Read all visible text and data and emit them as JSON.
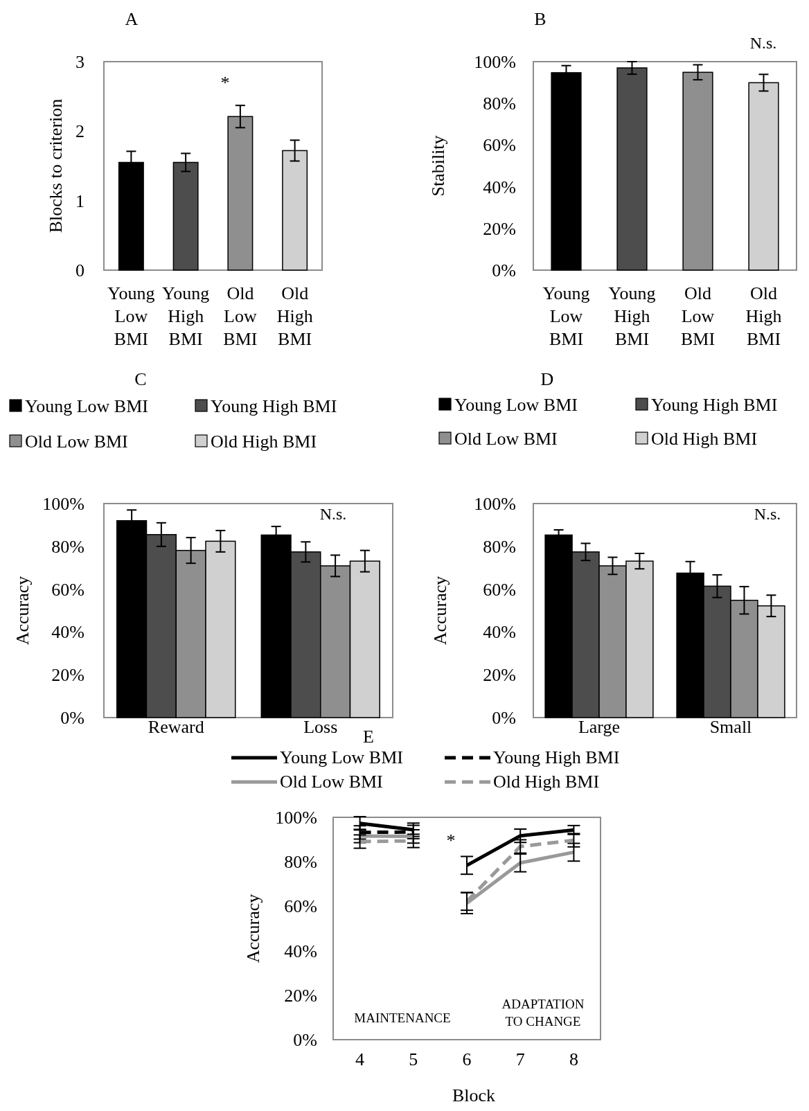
{
  "chart_data": [
    {
      "type": "bar",
      "title": "A",
      "ylabel": "Blocks to criterion",
      "categories": [
        "Young Low BMI",
        "Young High BMI",
        "Old Low BMI",
        "Old High BMI"
      ],
      "values": [
        1.55,
        1.55,
        2.21,
        1.72
      ],
      "errors": [
        0.16,
        0.13,
        0.16,
        0.15
      ],
      "colors": [
        "#000000",
        "#4d4d4d",
        "#8f8f8f",
        "#d0d0d0"
      ],
      "ylim": [
        0,
        3
      ],
      "yticks": [
        0,
        1,
        2,
        3
      ],
      "grid": false,
      "legend": false,
      "annotations": [
        "*"
      ]
    },
    {
      "type": "bar",
      "title": "B",
      "ylabel": "Stability",
      "categories": [
        "Young Low BMI",
        "Young High BMI",
        "Old Low BMI",
        "Old High BMI"
      ],
      "values": [
        94.7,
        97,
        94.9,
        89.9
      ],
      "errors": [
        3.4,
        3,
        3.6,
        4
      ],
      "colors": [
        "#000000",
        "#4d4d4d",
        "#8f8f8f",
        "#d0d0d0"
      ],
      "ylim": [
        0,
        100
      ],
      "yticks": [
        {
          "value": 0,
          "label": "0%"
        },
        {
          "value": 20,
          "label": "20%"
        },
        {
          "value": 40,
          "label": "40%"
        },
        {
          "value": 60,
          "label": "60%"
        },
        {
          "value": 80,
          "label": "80%"
        },
        {
          "value": 100,
          "label": "100%"
        }
      ],
      "grid": false,
      "legend": false,
      "annotations": [
        "N.s."
      ]
    },
    {
      "type": "bar",
      "title": "C",
      "ylabel": "Accuracy",
      "categories": [
        "Reward",
        "Loss"
      ],
      "series": [
        {
          "name": "Young Low BMI",
          "color": "#000000",
          "values": [
            92,
            85.3
          ],
          "errors": [
            5,
            4
          ]
        },
        {
          "name": "Young High BMI",
          "color": "#4d4d4d",
          "values": [
            85.5,
            77.4
          ],
          "errors": [
            5.5,
            4.7
          ]
        },
        {
          "name": "Old Low BMI",
          "color": "#8f8f8f",
          "values": [
            78.1,
            70.9
          ],
          "errors": [
            6,
            5
          ]
        },
        {
          "name": "Old High BMI",
          "color": "#d0d0d0",
          "values": [
            82.4,
            73.1
          ],
          "errors": [
            5,
            5
          ]
        }
      ],
      "ylim": [
        0,
        100
      ],
      "yticks": [
        {
          "value": 0,
          "label": "0%"
        },
        {
          "value": 20,
          "label": "20%"
        },
        {
          "value": 40,
          "label": "40%"
        },
        {
          "value": 60,
          "label": "60%"
        },
        {
          "value": 80,
          "label": "80%"
        },
        {
          "value": 100,
          "label": "100%"
        }
      ],
      "grid": false,
      "legend": "top",
      "annotations": [
        "N.s."
      ]
    },
    {
      "type": "bar",
      "title": "D",
      "ylabel": "Accuracy",
      "categories": [
        "Large",
        "Small"
      ],
      "series": [
        {
          "name": "Young Low BMI",
          "color": "#000000",
          "values": [
            85.3,
            67.5
          ],
          "errors": [
            2.4,
            5.4
          ]
        },
        {
          "name": "Young High BMI",
          "color": "#4d4d4d",
          "values": [
            77.4,
            61.4
          ],
          "errors": [
            4,
            5.3
          ]
        },
        {
          "name": "Old Low BMI",
          "color": "#8f8f8f",
          "values": [
            70.9,
            54.8
          ],
          "errors": [
            4,
            6.4
          ]
        },
        {
          "name": "Old High BMI",
          "color": "#d0d0d0",
          "values": [
            73.1,
            52.2
          ],
          "errors": [
            3.6,
            5
          ]
        }
      ],
      "ylim": [
        0,
        100
      ],
      "yticks": [
        {
          "value": 0,
          "label": "0%"
        },
        {
          "value": 20,
          "label": "20%"
        },
        {
          "value": 40,
          "label": "40%"
        },
        {
          "value": 60,
          "label": "60%"
        },
        {
          "value": 80,
          "label": "80%"
        },
        {
          "value": 100,
          "label": "100%"
        }
      ],
      "grid": false,
      "legend": "top",
      "annotations": [
        "N.s."
      ]
    },
    {
      "type": "line",
      "title": "E",
      "xlabel": "Block",
      "ylabel": "Accuracy",
      "x": [
        4,
        5,
        5.5,
        6,
        7,
        8
      ],
      "series": [
        {
          "name": "Young Low BMI",
          "color": "#000000",
          "line_style": "solid",
          "values": [
            97.3,
            94.4,
            null,
            78.4,
            91.7,
            94.3
          ],
          "errors": [
            3,
            3,
            null,
            4,
            3,
            2
          ]
        },
        {
          "name": "Young High BMI",
          "color": "#000000",
          "line_style": "dashed",
          "values": [
            93.2,
            93.4,
            null,
            null,
            null,
            null
          ],
          "errors": [
            3,
            3,
            null,
            null,
            null,
            null
          ]
        },
        {
          "name": "Old Low BMI",
          "color": "#999999",
          "line_style": "solid",
          "values": [
            91.6,
            91.4,
            null,
            61.4,
            79.5,
            84.3
          ],
          "errors": [
            3,
            3,
            null,
            4.7,
            4,
            4
          ]
        },
        {
          "name": "Old High BMI",
          "color": "#999999",
          "line_style": "dashed",
          "values": [
            89.1,
            89.4,
            null,
            62.2,
            86.9,
            89.7
          ],
          "errors": [
            3,
            3,
            null,
            4,
            3,
            3
          ]
        }
      ],
      "xlim": [
        3.5,
        8.5
      ],
      "xticks": [
        4,
        5,
        6,
        7,
        8
      ],
      "ylim": [
        0,
        100
      ],
      "yticks": [
        {
          "value": 0,
          "label": "0%"
        },
        {
          "value": 20,
          "label": "20%"
        },
        {
          "value": 40,
          "label": "40%"
        },
        {
          "value": 60,
          "label": "60%"
        },
        {
          "value": 80,
          "label": "80%"
        },
        {
          "value": 100,
          "label": "100%"
        }
      ],
      "grid": false,
      "legend": "top",
      "marker": "none",
      "annotations": [
        "*",
        "MAINTENANCE",
        "ADAPTATION TO CHANGE"
      ]
    }
  ]
}
